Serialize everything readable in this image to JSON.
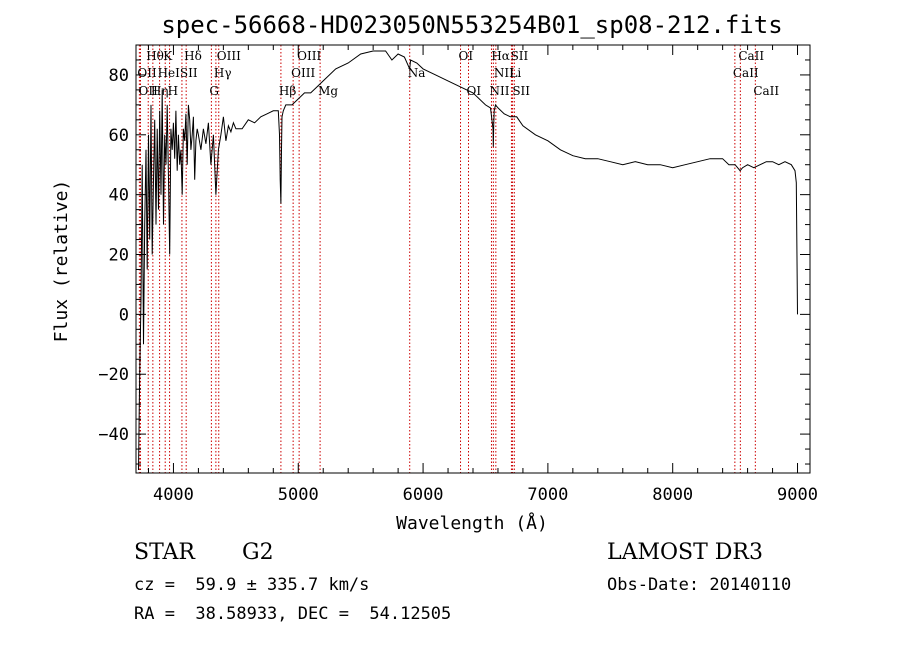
{
  "chart_data": {
    "type": "line",
    "title": "spec-56668-HD023050N553254B01_sp08-212.fits",
    "xlabel": "Wavelength (Å)",
    "ylabel": "Flux (relative)",
    "xlim": [
      3700,
      9100
    ],
    "ylim": [
      -53,
      90
    ],
    "xticks": [
      4000,
      5000,
      6000,
      7000,
      8000,
      9000
    ],
    "yticks": [
      -40,
      -20,
      0,
      20,
      40,
      60,
      80
    ],
    "series": [
      {
        "name": "flux",
        "x": [
          3720,
          3730,
          3740,
          3750,
          3760,
          3770,
          3780,
          3790,
          3800,
          3810,
          3820,
          3830,
          3840,
          3850,
          3860,
          3870,
          3880,
          3890,
          3900,
          3910,
          3920,
          3930,
          3940,
          3950,
          3960,
          3970,
          3980,
          3990,
          4000,
          4010,
          4020,
          4030,
          4040,
          4050,
          4060,
          4070,
          4080,
          4090,
          4100,
          4110,
          4120,
          4130,
          4140,
          4150,
          4160,
          4170,
          4180,
          4190,
          4200,
          4220,
          4240,
          4260,
          4280,
          4300,
          4320,
          4340,
          4360,
          4380,
          4400,
          4420,
          4440,
          4460,
          4480,
          4500,
          4550,
          4600,
          4650,
          4700,
          4750,
          4800,
          4840,
          4850,
          4855,
          4861,
          4866,
          4870,
          4880,
          4900,
          4950,
          5000,
          5050,
          5100,
          5150,
          5200,
          5300,
          5400,
          5500,
          5600,
          5700,
          5750,
          5800,
          5850,
          5893,
          5900,
          5950,
          6000,
          6100,
          6200,
          6300,
          6400,
          6500,
          6540,
          6560,
          6563,
          6566,
          6570,
          6580,
          6600,
          6650,
          6700,
          6750,
          6800,
          6900,
          7000,
          7100,
          7200,
          7300,
          7400,
          7500,
          7600,
          7700,
          7800,
          7900,
          8000,
          8100,
          8200,
          8300,
          8400,
          8450,
          8500,
          8540,
          8560,
          8600,
          8650,
          8700,
          8750,
          8800,
          8850,
          8900,
          8950,
          8980,
          8990,
          9000
        ],
        "y": [
          -52,
          -20,
          5,
          50,
          -10,
          30,
          55,
          15,
          60,
          25,
          70,
          20,
          45,
          65,
          30,
          62,
          35,
          68,
          40,
          75,
          30,
          60,
          50,
          70,
          45,
          20,
          62,
          55,
          64,
          52,
          68,
          48,
          60,
          50,
          55,
          40,
          62,
          58,
          67,
          50,
          70,
          65,
          55,
          60,
          66,
          45,
          58,
          62,
          60,
          55,
          62,
          57,
          64,
          50,
          60,
          40,
          55,
          60,
          66,
          58,
          63,
          61,
          64,
          62,
          62,
          65,
          64,
          66,
          67,
          68,
          68,
          60,
          45,
          37,
          55,
          66,
          68,
          70,
          70,
          72,
          74,
          74,
          76,
          78,
          82,
          84,
          87,
          88,
          88,
          85,
          87,
          86,
          82,
          85,
          84,
          82,
          80,
          78,
          76,
          74,
          70,
          69,
          62,
          56,
          63,
          68,
          70,
          69,
          67,
          66,
          66,
          63,
          60,
          58,
          55,
          53,
          52,
          52,
          51,
          50,
          51,
          50,
          50,
          49,
          50,
          51,
          52,
          52,
          50,
          50,
          48,
          49,
          50,
          49,
          50,
          51,
          51,
          50,
          51,
          50,
          48,
          44,
          0
        ],
        "color": "#000000"
      }
    ],
    "lines": [
      {
        "name": "Hθ",
        "x": 3798,
        "row": 0,
        "color": "#cc0000"
      },
      {
        "name": "OII",
        "x": 3727,
        "row": 1,
        "color": "#cc0000"
      },
      {
        "name": "OII",
        "x": 3736,
        "row": 2,
        "color": "#cc0000"
      },
      {
        "name": "Hη",
        "x": 3835,
        "row": 2,
        "color": "#cc0000"
      },
      {
        "name": "HeI",
        "x": 3889,
        "row": 1,
        "color": "#cc0000"
      },
      {
        "name": "K",
        "x": 3934,
        "row": 0,
        "color": "#cc0000"
      },
      {
        "name": "SII",
        "x": 4068,
        "row": 1,
        "color": "#cc0000"
      },
      {
        "name": "H",
        "x": 3969,
        "row": 2,
        "color": "#cc0000"
      },
      {
        "name": "Hδ",
        "x": 4102,
        "row": 0,
        "color": "#cc0000"
      },
      {
        "name": "OIII",
        "x": 4363,
        "row": 0,
        "color": "#cc0000"
      },
      {
        "name": "Hγ",
        "x": 4340,
        "row": 1,
        "color": "#cc0000"
      },
      {
        "name": "G",
        "x": 4304,
        "row": 2,
        "color": "#cc0000"
      },
      {
        "name": "Hβ",
        "x": 4861,
        "row": 2,
        "color": "#cc0000"
      },
      {
        "name": "OIII",
        "x": 5007,
        "row": 0,
        "color": "#cc0000"
      },
      {
        "name": "OIII",
        "x": 4959,
        "row": 1,
        "color": "#cc0000"
      },
      {
        "name": "Mg",
        "x": 5175,
        "row": 2,
        "color": "#cc0000"
      },
      {
        "name": "Na",
        "x": 5893,
        "row": 1,
        "color": "#cc0000"
      },
      {
        "name": "OI",
        "x": 6300,
        "row": 0,
        "color": "#cc0000"
      },
      {
        "name": "OI",
        "x": 6364,
        "row": 2,
        "color": "#cc0000"
      },
      {
        "name": "Hα",
        "x": 6563,
        "row": 0,
        "color": "#cc0000"
      },
      {
        "name": "NII",
        "x": 6583,
        "row": 1,
        "color": "#cc0000"
      },
      {
        "name": "NII",
        "x": 6548,
        "row": 2,
        "color": "#cc0000"
      },
      {
        "name": "SII",
        "x": 6717,
        "row": 0,
        "color": "#cc0000"
      },
      {
        "name": "Li",
        "x": 6708,
        "row": 1,
        "color": "#cc0000"
      },
      {
        "name": "SII",
        "x": 6731,
        "row": 2,
        "color": "#cc0000"
      },
      {
        "name": "CaII",
        "x": 8542,
        "row": 0,
        "color": "#cc0000"
      },
      {
        "name": "CaII",
        "x": 8498,
        "row": 1,
        "color": "#cc0000"
      },
      {
        "name": "CaII",
        "x": 8662,
        "row": 2,
        "color": "#cc0000"
      }
    ]
  },
  "info": {
    "object_class": "STAR",
    "subclass": "G2",
    "survey": "LAMOST DR3",
    "redshift": "cz =  59.9 ± 335.7 km/s",
    "obs_date": "Obs-Date: 20140110",
    "coords": "RA =  38.58933, DEC =  54.12505"
  }
}
